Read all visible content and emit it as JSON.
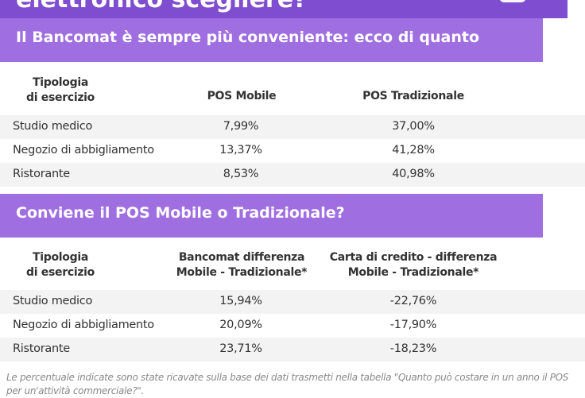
{
  "banner": {
    "title_partial": "elettronico scegliere?"
  },
  "section1": {
    "title": "Il Bancomat è sempre più conveniente: ecco di quanto",
    "headers": {
      "col1_line1": "Tipologia",
      "col1_line2": "di esercizio",
      "col2": "POS Mobile",
      "col3": "POS Tradizionale"
    },
    "rows": [
      {
        "type": "Studio medico",
        "mobile": "7,99%",
        "traditional": "37,00%"
      },
      {
        "type": "Negozio di abbigliamento",
        "mobile": "13,37%",
        "traditional": "41,28%"
      },
      {
        "type": "Ristorante",
        "mobile": "8,53%",
        "traditional": "40,98%"
      }
    ]
  },
  "section2": {
    "title": "Conviene il POS Mobile o Tradizionale?",
    "headers": {
      "col1_line1": "Tipologia",
      "col1_line2": "di esercizio",
      "col2_line1": "Bancomat differenza",
      "col2_line2": "Mobile - Tradizionale*",
      "col3_line1": "Carta di credito - differenza",
      "col3_line2": "Mobile - Tradizionale*"
    },
    "rows": [
      {
        "type": "Studio medico",
        "bancomat_diff": "15,94%",
        "credit_diff": "-22,76%"
      },
      {
        "type": "Negozio di abbigliamento",
        "bancomat_diff": "20,09%",
        "credit_diff": "-17,90%"
      },
      {
        "type": "Ristorante",
        "bancomat_diff": "23,71%",
        "credit_diff": "-18,23%"
      }
    ]
  },
  "footnote": "Le percentuale indicate sono state ricavate sulla base dei dati trasmetti nella tabella \"Quanto può costare in un anno il POS per un'attività commerciale?\"."
}
